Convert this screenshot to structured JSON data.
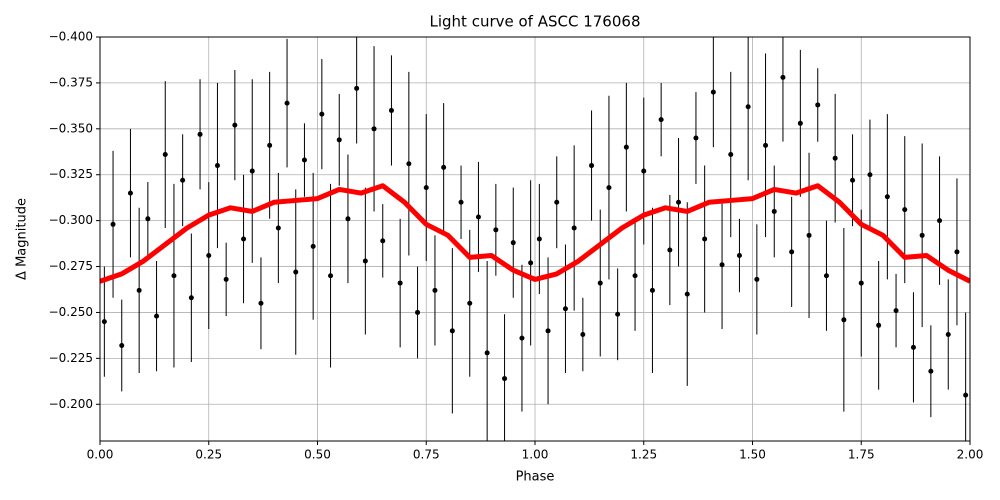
{
  "chart_data": {
    "type": "scatter",
    "title": "Light curve of ASCC 176068",
    "xlabel": "Phase",
    "ylabel": "Δ Magnitude",
    "xlim": [
      0,
      2
    ],
    "ylim": [
      -0.18,
      -0.4
    ],
    "grid": true,
    "xticks": [
      {
        "value": 0,
        "label": "0.00"
      },
      {
        "value": 0.25,
        "label": "0.25"
      },
      {
        "value": 0.5,
        "label": "0.50"
      },
      {
        "value": 0.75,
        "label": "0.75"
      },
      {
        "value": 1,
        "label": "1.00"
      },
      {
        "value": 1.25,
        "label": "1.25"
      },
      {
        "value": 1.5,
        "label": "1.50"
      },
      {
        "value": 1.75,
        "label": "1.75"
      },
      {
        "value": 2,
        "label": "2.00"
      }
    ],
    "yticks": [
      {
        "value": -0.4,
        "label": "−0.400"
      },
      {
        "value": -0.375,
        "label": "−0.375"
      },
      {
        "value": -0.35,
        "label": "−0.350"
      },
      {
        "value": -0.325,
        "label": "−0.325"
      },
      {
        "value": -0.3,
        "label": "−0.300"
      },
      {
        "value": -0.275,
        "label": "−0.275"
      },
      {
        "value": -0.25,
        "label": "−0.250"
      },
      {
        "value": -0.225,
        "label": "−0.225"
      },
      {
        "value": -0.2,
        "label": "−0.200"
      }
    ],
    "series": [
      {
        "type": "errorbar",
        "color": "#000000",
        "x": [
          0.01,
          0.03,
          0.05,
          0.07,
          0.09,
          0.11,
          0.13,
          0.15,
          0.17,
          0.19,
          0.21,
          0.23,
          0.25,
          0.27,
          0.29,
          0.31,
          0.33,
          0.35,
          0.37,
          0.39,
          0.41,
          0.43,
          0.45,
          0.47,
          0.49,
          0.51,
          0.53,
          0.55,
          0.57,
          0.59,
          0.61,
          0.63,
          0.65,
          0.67,
          0.69,
          0.71,
          0.73,
          0.75,
          0.77,
          0.79,
          0.81,
          0.83,
          0.85,
          0.87,
          0.89,
          0.91,
          0.93,
          0.95,
          0.97,
          0.99,
          1.01,
          1.03,
          1.05,
          1.07,
          1.09,
          1.11,
          1.13,
          1.15,
          1.17,
          1.19,
          1.21,
          1.23,
          1.25,
          1.27,
          1.29,
          1.31,
          1.33,
          1.35,
          1.37,
          1.39,
          1.41,
          1.43,
          1.45,
          1.47,
          1.49,
          1.51,
          1.53,
          1.55,
          1.57,
          1.59,
          1.61,
          1.63,
          1.65,
          1.67,
          1.69,
          1.71,
          1.73,
          1.75,
          1.77,
          1.79,
          1.81,
          1.83,
          1.85,
          1.87,
          1.89,
          1.91,
          1.93,
          1.95,
          1.97,
          1.99
        ],
        "values": [
          -0.245,
          -0.298,
          -0.232,
          -0.315,
          -0.262,
          -0.301,
          -0.248,
          -0.336,
          -0.27,
          -0.322,
          -0.258,
          -0.347,
          -0.281,
          -0.33,
          -0.268,
          -0.352,
          -0.29,
          -0.327,
          -0.255,
          -0.341,
          -0.296,
          -0.364,
          -0.272,
          -0.333,
          -0.286,
          -0.358,
          -0.27,
          -0.344,
          -0.301,
          -0.372,
          -0.278,
          -0.35,
          -0.289,
          -0.36,
          -0.266,
          -0.331,
          -0.25,
          -0.318,
          -0.262,
          -0.329,
          -0.24,
          -0.31,
          -0.255,
          -0.302,
          -0.228,
          -0.295,
          -0.214,
          -0.288,
          -0.236,
          -0.277,
          -0.29,
          -0.24,
          -0.31,
          -0.252,
          -0.296,
          -0.238,
          -0.33,
          -0.266,
          -0.318,
          -0.249,
          -0.34,
          -0.27,
          -0.327,
          -0.262,
          -0.355,
          -0.284,
          -0.31,
          -0.26,
          -0.345,
          -0.29,
          -0.37,
          -0.276,
          -0.336,
          -0.281,
          -0.362,
          -0.268,
          -0.341,
          -0.305,
          -0.378,
          -0.283,
          -0.353,
          -0.292,
          -0.363,
          -0.27,
          -0.334,
          -0.246,
          -0.322,
          -0.266,
          -0.325,
          -0.243,
          -0.313,
          -0.251,
          -0.306,
          -0.231,
          -0.292,
          -0.218,
          -0.3,
          -0.238,
          -0.283,
          -0.205
        ],
        "errors": [
          0.03,
          0.04,
          0.025,
          0.035,
          0.045,
          0.02,
          0.03,
          0.04,
          0.05,
          0.025,
          0.035,
          0.03,
          0.04,
          0.045,
          0.02,
          0.03,
          0.035,
          0.05,
          0.025,
          0.04,
          0.03,
          0.035,
          0.045,
          0.02,
          0.04,
          0.03,
          0.05,
          0.025,
          0.035,
          0.03,
          0.04,
          0.045,
          0.02,
          0.03,
          0.035,
          0.05,
          0.025,
          0.04,
          0.03,
          0.035,
          0.045,
          0.02,
          0.04,
          0.03,
          0.05,
          0.025,
          0.035,
          0.03,
          0.04,
          0.045,
          0.03,
          0.04,
          0.025,
          0.035,
          0.045,
          0.02,
          0.03,
          0.04,
          0.05,
          0.025,
          0.035,
          0.03,
          0.04,
          0.045,
          0.02,
          0.03,
          0.035,
          0.05,
          0.025,
          0.04,
          0.03,
          0.035,
          0.045,
          0.02,
          0.04,
          0.03,
          0.05,
          0.025,
          0.035,
          0.03,
          0.04,
          0.045,
          0.02,
          0.03,
          0.035,
          0.05,
          0.025,
          0.04,
          0.03,
          0.035,
          0.045,
          0.02,
          0.04,
          0.03,
          0.05,
          0.025,
          0.035,
          0.03,
          0.04,
          0.045
        ]
      },
      {
        "type": "line",
        "color": "#ff0000",
        "x": [
          0,
          0.05,
          0.1,
          0.15,
          0.2,
          0.25,
          0.3,
          0.35,
          0.4,
          0.45,
          0.5,
          0.55,
          0.6,
          0.65,
          0.7,
          0.75,
          0.8,
          0.85,
          0.9,
          0.95,
          1,
          1.05,
          1.1,
          1.15,
          1.2,
          1.25,
          1.3,
          1.35,
          1.4,
          1.45,
          1.5,
          1.55,
          1.6,
          1.65,
          1.7,
          1.75,
          1.8,
          1.85,
          1.9,
          1.95,
          2
        ],
        "values": [
          -0.267,
          -0.271,
          -0.278,
          -0.287,
          -0.296,
          -0.303,
          -0.307,
          -0.305,
          -0.31,
          -0.311,
          -0.312,
          -0.317,
          -0.315,
          -0.319,
          -0.31,
          -0.298,
          -0.292,
          -0.28,
          -0.281,
          -0.273,
          -0.268,
          -0.271,
          -0.278,
          -0.287,
          -0.296,
          -0.303,
          -0.307,
          -0.305,
          -0.31,
          -0.311,
          -0.312,
          -0.317,
          -0.315,
          -0.319,
          -0.31,
          -0.298,
          -0.292,
          -0.28,
          -0.281,
          -0.273,
          -0.267
        ]
      }
    ]
  }
}
